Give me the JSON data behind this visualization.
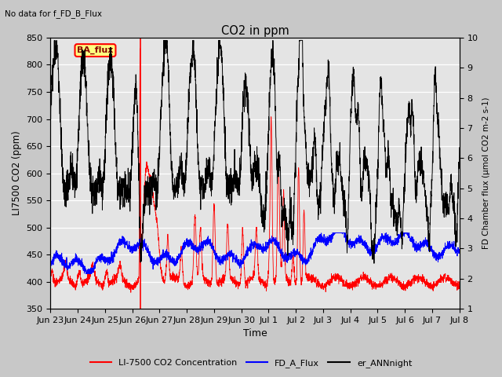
{
  "title": "CO2 in ppm",
  "no_data_text": "No data for f_FD_B_Flux",
  "ylabel_left": "LI7500 CO2 (ppm)",
  "ylabel_right": "FD Chamber flux (μmol CO2 m-2 s-1)",
  "xlabel": "Time",
  "ylim_left": [
    350,
    850
  ],
  "ylim_right": [
    1.0,
    10.0
  ],
  "yticks_left": [
    350,
    400,
    450,
    500,
    550,
    600,
    650,
    700,
    750,
    800,
    850
  ],
  "yticks_right": [
    1.0,
    2.0,
    3.0,
    4.0,
    5.0,
    6.0,
    7.0,
    8.0,
    9.0,
    10.0
  ],
  "legend_label": "BA_flux",
  "line1_label": "LI-7500 CO2 Concentration",
  "line2_label": "FD_A_Flux",
  "line3_label": "er_ANNnight",
  "line1_color": "red",
  "line2_color": "blue",
  "line3_color": "black",
  "bg_color": "#e8e8e8",
  "vline_x": 3.3,
  "vline_color": "red",
  "xtick_labels": [
    "Jun 23",
    "Jun 24",
    "Jun 25",
    "Jun 26",
    "Jun 27",
    "Jun 28",
    "Jun 29",
    "Jun 30",
    "Jul 1",
    "Jul 2",
    "Jul 3",
    "Jul 4",
    "Jul 5",
    "Jul 6",
    "Jul 7",
    "Jul 8"
  ]
}
